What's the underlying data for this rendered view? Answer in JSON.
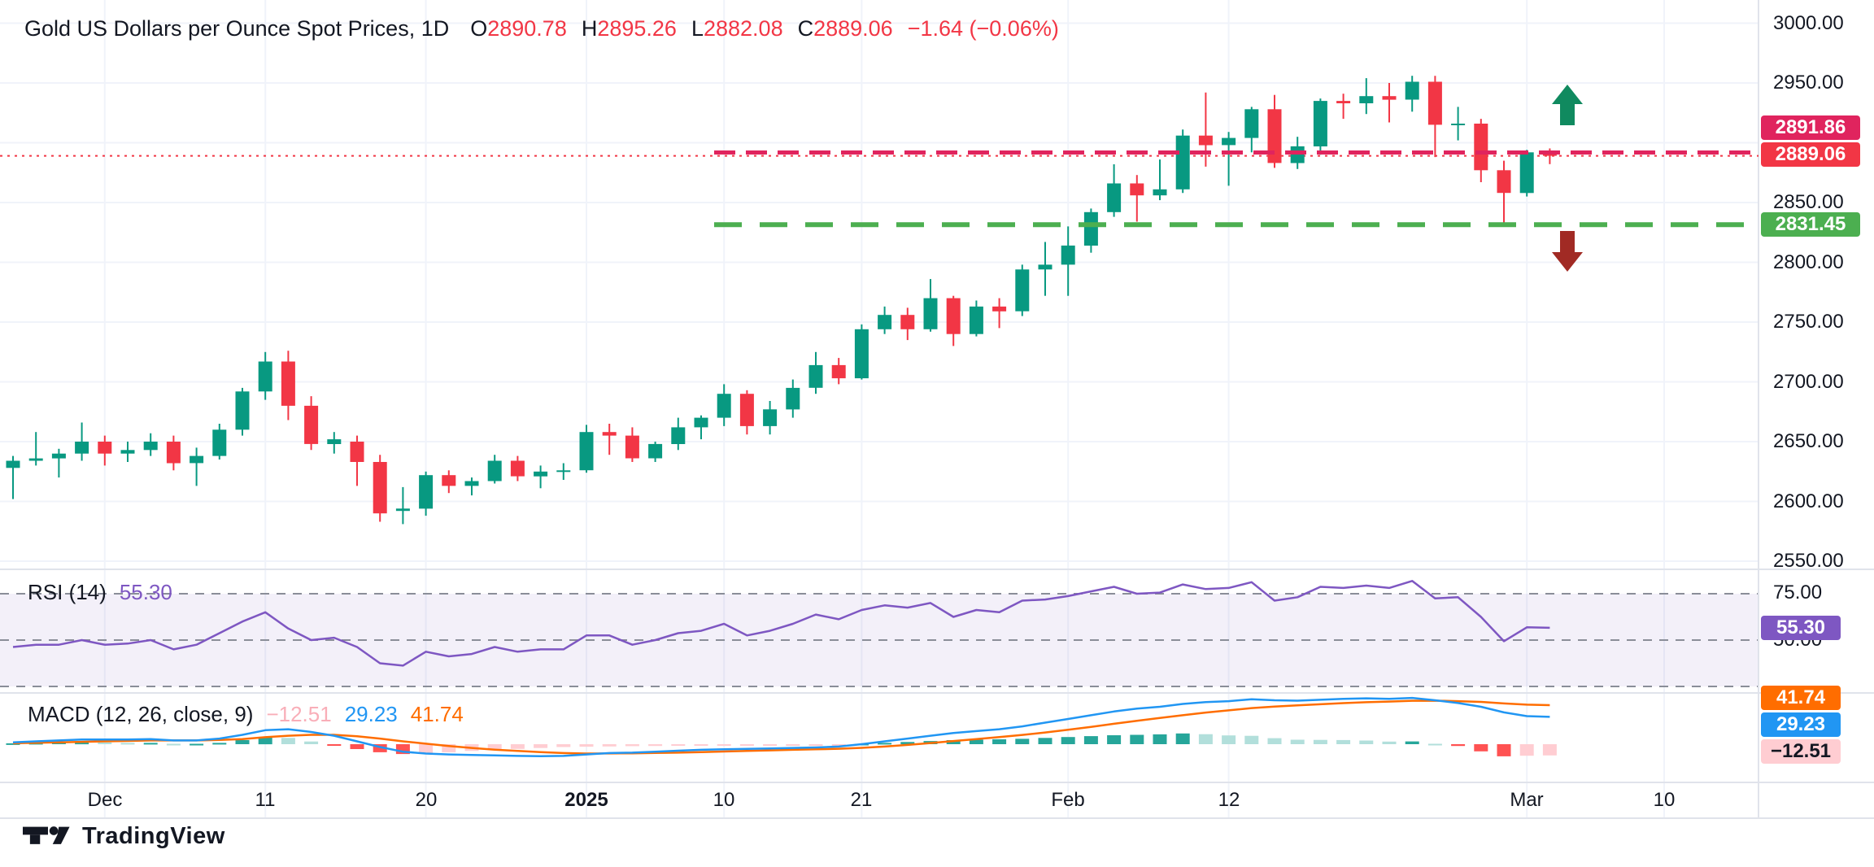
{
  "header": {
    "title": "Gold US Dollars per Ounce Spot Prices, 1D",
    "ohlc": [
      {
        "label": "O",
        "value": "2890.78"
      },
      {
        "label": "H",
        "value": "2895.26"
      },
      {
        "label": "L",
        "value": "2882.08"
      },
      {
        "label": "C",
        "value": "2889.06"
      }
    ],
    "change": "−1.64 (−0.06%)"
  },
  "panes": {
    "rsi": {
      "label": "RSI (14)",
      "value": "55.30"
    },
    "macd": {
      "label": "MACD (12, 26, close, 9)",
      "hist_value": "−12.51",
      "macd_value": "29.23",
      "signal_value": "41.74"
    }
  },
  "price_axis": {
    "labels": [
      {
        "text": "3000.00",
        "price": 3000
      },
      {
        "text": "2950.00",
        "price": 2950
      },
      {
        "text": "2850.00",
        "price": 2850
      },
      {
        "text": "2800.00",
        "price": 2800
      },
      {
        "text": "2750.00",
        "price": 2750
      },
      {
        "text": "2700.00",
        "price": 2700
      },
      {
        "text": "2650.00",
        "price": 2650
      },
      {
        "text": "2600.00",
        "price": 2600
      },
      {
        "text": "2550.00",
        "price": 2550
      }
    ],
    "badges": [
      {
        "value": "2891.86",
        "color": "#E0245E"
      },
      {
        "value": "2889.06",
        "color": "#F23645"
      },
      {
        "value": "2831.45",
        "color": "#4CAF50"
      }
    ]
  },
  "rsi_axis": {
    "labels": [
      {
        "text": "75.00",
        "y": 729
      },
      {
        "text": "50.00",
        "y": 787
      }
    ],
    "badge": {
      "value": "55.30",
      "color": "#7E57C2"
    }
  },
  "macd_axis": {
    "badges": [
      {
        "value": "41.74",
        "bg": "#FF6D00"
      },
      {
        "value": "29.23",
        "bg": "#2196F3"
      },
      {
        "value": "−12.51",
        "bg": "#FFCDD2"
      }
    ]
  },
  "time_axis": {
    "labels": [
      {
        "text": "Dec",
        "i": 4
      },
      {
        "text": "11",
        "i": 11
      },
      {
        "text": "20",
        "i": 18
      },
      {
        "text": "2025",
        "i": 25,
        "bold": true
      },
      {
        "text": "10",
        "i": 31
      },
      {
        "text": "21",
        "i": 37
      },
      {
        "text": "Feb",
        "i": 46
      },
      {
        "text": "12",
        "i": 53
      },
      {
        "text": "Mar",
        "i": 66
      },
      {
        "text": "10",
        "x": 2046
      }
    ]
  },
  "logo": {
    "text": "TradingView"
  },
  "chart_data": {
    "type": "candlestick",
    "title": "Gold US Dollars per Ounce Spot Prices",
    "interval": "1D",
    "last_ohlc": {
      "open": 2890.78,
      "high": 2895.26,
      "low": 2882.08,
      "close": 2889.06,
      "change": -1.64,
      "change_pct": -0.06
    },
    "ylim": [
      2543,
      3019
    ],
    "price_gridlines": [
      3000,
      2950,
      2900,
      2850,
      2800,
      2750,
      2700,
      2650,
      2600,
      2550
    ],
    "levels": {
      "alert_line": 2891.86,
      "last_price": 2889.06,
      "support_line": 2831.45
    },
    "indicators": {
      "rsi_last": 55.3,
      "macd_last": 29.23,
      "signal_last": 41.74,
      "hist_last": -12.51
    },
    "candles": [
      [
        2628,
        2638,
        2602,
        2634
      ],
      [
        2634,
        2658,
        2630,
        2636
      ],
      [
        2636,
        2644,
        2620,
        2640
      ],
      [
        2640,
        2666,
        2634,
        2650
      ],
      [
        2650,
        2655,
        2630,
        2640
      ],
      [
        2640,
        2650,
        2633,
        2643
      ],
      [
        2643,
        2657,
        2638,
        2650
      ],
      [
        2650,
        2655,
        2626,
        2632
      ],
      [
        2632,
        2645,
        2613,
        2638
      ],
      [
        2638,
        2665,
        2635,
        2660
      ],
      [
        2660,
        2695,
        2655,
        2692
      ],
      [
        2692,
        2725,
        2685,
        2717
      ],
      [
        2717,
        2726,
        2668,
        2680
      ],
      [
        2680,
        2688,
        2643,
        2648
      ],
      [
        2648,
        2658,
        2640,
        2652
      ],
      [
        2650,
        2655,
        2613,
        2633
      ],
      [
        2633,
        2639,
        2583,
        2590
      ],
      [
        2592,
        2612,
        2581,
        2594
      ],
      [
        2594,
        2625,
        2588,
        2622
      ],
      [
        2622,
        2626,
        2607,
        2613
      ],
      [
        2613,
        2620,
        2605,
        2617
      ],
      [
        2617,
        2639,
        2615,
        2634
      ],
      [
        2634,
        2638,
        2617,
        2621
      ],
      [
        2621,
        2630,
        2611,
        2625
      ],
      [
        2625,
        2632,
        2618,
        2626
      ],
      [
        2626,
        2664,
        2624,
        2658
      ],
      [
        2658,
        2665,
        2639,
        2655
      ],
      [
        2655,
        2662,
        2633,
        2636
      ],
      [
        2636,
        2650,
        2633,
        2648
      ],
      [
        2648,
        2670,
        2643,
        2662
      ],
      [
        2662,
        2672,
        2652,
        2670
      ],
      [
        2670,
        2698,
        2663,
        2690
      ],
      [
        2690,
        2693,
        2656,
        2663
      ],
      [
        2663,
        2684,
        2656,
        2677
      ],
      [
        2677,
        2702,
        2670,
        2695
      ],
      [
        2695,
        2725,
        2690,
        2714
      ],
      [
        2714,
        2720,
        2698,
        2703
      ],
      [
        2703,
        2748,
        2702,
        2744
      ],
      [
        2744,
        2763,
        2740,
        2756
      ],
      [
        2756,
        2762,
        2735,
        2744
      ],
      [
        2744,
        2786,
        2742,
        2770
      ],
      [
        2770,
        2772,
        2730,
        2740
      ],
      [
        2740,
        2768,
        2738,
        2763
      ],
      [
        2763,
        2770,
        2745,
        2759
      ],
      [
        2759,
        2798,
        2755,
        2794
      ],
      [
        2794,
        2817,
        2772,
        2798
      ],
      [
        2798,
        2830,
        2772,
        2814
      ],
      [
        2814,
        2845,
        2808,
        2842
      ],
      [
        2842,
        2882,
        2838,
        2866
      ],
      [
        2866,
        2873,
        2834,
        2856
      ],
      [
        2856,
        2886,
        2852,
        2861
      ],
      [
        2861,
        2911,
        2858,
        2906
      ],
      [
        2906,
        2942,
        2880,
        2898
      ],
      [
        2898,
        2909,
        2864,
        2904
      ],
      [
        2904,
        2930,
        2892,
        2928
      ],
      [
        2928,
        2940,
        2879,
        2883
      ],
      [
        2883,
        2905,
        2878,
        2897
      ],
      [
        2897,
        2937,
        2890,
        2935
      ],
      [
        2935,
        2941,
        2920,
        2933
      ],
      [
        2933,
        2954,
        2924,
        2939
      ],
      [
        2939,
        2950,
        2917,
        2936
      ],
      [
        2936,
        2956,
        2926,
        2951
      ],
      [
        2951,
        2956,
        2888,
        2915
      ],
      [
        2915,
        2930,
        2902,
        2916
      ],
      [
        2916,
        2920,
        2867,
        2877
      ],
      [
        2877,
        2885,
        2832,
        2858
      ],
      [
        2858,
        2894,
        2855,
        2892
      ],
      [
        2890.78,
        2895.26,
        2882.08,
        2889.06
      ]
    ],
    "rsi": [
      47,
      48,
      48,
      50,
      48,
      48.5,
      50,
      46,
      48,
      53,
      58,
      62,
      55,
      50,
      51,
      47,
      40,
      39,
      45,
      43,
      44,
      47,
      45,
      46,
      46,
      52,
      52,
      48,
      50,
      53,
      54,
      57,
      52,
      54,
      57,
      61,
      59,
      63,
      65,
      64,
      66,
      60,
      63,
      62,
      67,
      67.5,
      69,
      71,
      73,
      70,
      70.5,
      74,
      72,
      72.5,
      75,
      67,
      68.5,
      73,
      72.5,
      73.5,
      72.5,
      75.5,
      68,
      68.5,
      60,
      49.5,
      55.5,
      55.3
    ],
    "rsi_bands": [
      70,
      50,
      30
    ],
    "macd": {
      "macd": [
        2,
        3,
        4,
        5,
        5,
        5,
        5.5,
        4,
        4,
        6,
        10,
        15,
        16,
        13,
        9,
        3,
        -3,
        -8,
        -10,
        -11,
        -11.5,
        -12,
        -12.5,
        -12.8,
        -12.5,
        -11,
        -9.5,
        -9,
        -8,
        -7,
        -6,
        -5.5,
        -5,
        -4.5,
        -4,
        -3.5,
        -2.5,
        0,
        3,
        6,
        9,
        12,
        14,
        16,
        19,
        23,
        27,
        31,
        35,
        38,
        40,
        43,
        45,
        46,
        48,
        47,
        46.5,
        47.5,
        48.5,
        49,
        48.5,
        49.5,
        47,
        44,
        40,
        34,
        30,
        29.23
      ],
      "signal": [
        1,
        1.5,
        2,
        2.5,
        3,
        3.5,
        4,
        4,
        4,
        4.5,
        5.5,
        7.5,
        9,
        10,
        10,
        8.5,
        6,
        3,
        0.5,
        -2,
        -4,
        -5.8,
        -7.2,
        -8.5,
        -9.5,
        -10,
        -9.9,
        -9.7,
        -9.4,
        -9,
        -8.4,
        -7.8,
        -7.2,
        -6.6,
        -6,
        -5.5,
        -4.9,
        -3.9,
        -2.5,
        -0.8,
        1.2,
        3.4,
        5.5,
        7.6,
        9.9,
        12.5,
        15.4,
        18.5,
        21.8,
        25,
        28,
        31,
        33.8,
        36.2,
        38.6,
        40.3,
        41.5,
        42.7,
        43.9,
        44.9,
        45.6,
        46.4,
        46.5,
        46,
        45.2,
        43.6,
        42.3,
        41.74
      ],
      "hist": [
        1,
        1.5,
        2,
        2.5,
        2,
        1.5,
        1.5,
        0.5,
        0.5,
        1.5,
        4.5,
        7.5,
        7,
        3,
        -1,
        -5.5,
        -9,
        -11,
        -10.5,
        -9,
        -7.5,
        -6.2,
        -5.3,
        -4.3,
        -3.2,
        -2.8,
        -2.5,
        -2.2,
        -2,
        -1.8,
        -1.5,
        -1.3,
        -1.1,
        -0.9,
        -0.7,
        -0.5,
        -0.3,
        0.5,
        1.5,
        2.5,
        3.5,
        4.5,
        5,
        5.5,
        6,
        7,
        8,
        9,
        10,
        10.5,
        11,
        12,
        11.2,
        9.8,
        9.4,
        6.7,
        5,
        4.8,
        4.6,
        4.1,
        2.9,
        3.1,
        0.5,
        -2,
        -8,
        -13.5,
        -12.9,
        -12.51
      ]
    },
    "colors": {
      "up": "#089981",
      "down": "#F23645",
      "grid": "#F0F3FA",
      "separator": "#E0E3EB",
      "rsi": "#7E57C2",
      "rsiBand": "rgba(126,87,194,0.09)",
      "rsiDash": "#8A8E98",
      "macdLine": "#2196F3",
      "signal": "#FF6D00",
      "histUp": "#26A69A",
      "histUpFade": "#B2DFDB",
      "histDown": "#FF5252",
      "histDownFade": "#FFCDD2",
      "alert": "#E0245E",
      "support": "#4CAF50",
      "lastPrice": "#F23645",
      "upArrow": "#108A5F",
      "downArrow": "#A12A24"
    }
  }
}
